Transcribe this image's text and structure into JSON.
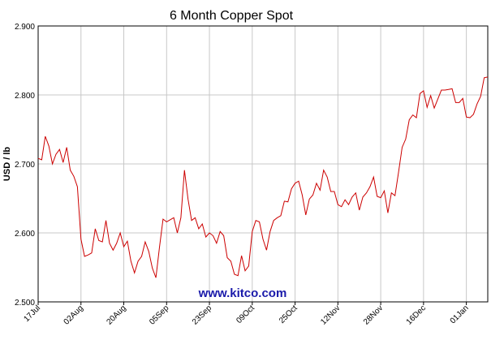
{
  "chart_data": {
    "type": "line",
    "title": "6 Month Copper Spot",
    "y_label": "USD / lb",
    "watermark": "www.kitco.com",
    "categories": [
      "17Jul",
      null,
      null,
      null,
      null,
      null,
      null,
      null,
      null,
      null,
      null,
      null,
      "02Aug",
      null,
      null,
      null,
      null,
      null,
      null,
      null,
      null,
      null,
      null,
      null,
      "20Aug",
      null,
      null,
      null,
      null,
      null,
      null,
      null,
      null,
      null,
      null,
      null,
      "05Sep",
      null,
      null,
      null,
      null,
      null,
      null,
      null,
      null,
      null,
      null,
      null,
      "23Sep",
      null,
      null,
      null,
      null,
      null,
      null,
      null,
      null,
      null,
      null,
      null,
      "09Oct",
      null,
      null,
      null,
      null,
      null,
      null,
      null,
      null,
      null,
      null,
      null,
      "25Oct",
      null,
      null,
      null,
      null,
      null,
      null,
      null,
      null,
      null,
      null,
      null,
      "12Nov",
      null,
      null,
      null,
      null,
      null,
      null,
      null,
      null,
      null,
      null,
      null,
      "28Nov",
      null,
      null,
      null,
      null,
      null,
      null,
      null,
      null,
      null,
      null,
      null,
      "16Dec",
      null,
      null,
      null,
      null,
      null,
      null,
      null,
      null,
      null,
      null,
      null,
      "01Jan",
      null,
      null,
      null,
      null,
      null,
      null
    ],
    "series": [
      {
        "name": "Copper",
        "color": "#cc0000",
        "values": [
          2.708,
          2.706,
          2.74,
          2.726,
          2.7,
          2.714,
          2.721,
          2.702,
          2.724,
          2.691,
          2.682,
          2.667,
          2.591,
          2.566,
          2.568,
          2.571,
          2.606,
          2.589,
          2.587,
          2.618,
          2.585,
          2.575,
          2.585,
          2.6,
          2.58,
          2.588,
          2.559,
          2.542,
          2.559,
          2.566,
          2.587,
          2.573,
          2.549,
          2.535,
          2.579,
          2.62,
          2.616,
          2.619,
          2.622,
          2.6,
          2.622,
          2.691,
          2.649,
          2.618,
          2.622,
          2.606,
          2.613,
          2.594,
          2.6,
          2.596,
          2.585,
          2.602,
          2.596,
          2.564,
          2.559,
          2.54,
          2.538,
          2.567,
          2.545,
          2.552,
          2.602,
          2.618,
          2.616,
          2.591,
          2.575,
          2.602,
          2.618,
          2.622,
          2.625,
          2.646,
          2.645,
          2.664,
          2.672,
          2.675,
          2.655,
          2.626,
          2.649,
          2.655,
          2.672,
          2.662,
          2.691,
          2.681,
          2.66,
          2.66,
          2.641,
          2.638,
          2.648,
          2.641,
          2.652,
          2.658,
          2.633,
          2.652,
          2.658,
          2.667,
          2.681,
          2.653,
          2.651,
          2.661,
          2.629,
          2.658,
          2.654,
          2.688,
          2.724,
          2.736,
          2.764,
          2.771,
          2.767,
          2.802,
          2.806,
          2.782,
          2.799,
          2.781,
          2.794,
          2.807,
          2.807,
          2.808,
          2.809,
          2.789,
          2.789,
          2.795,
          2.768,
          2.767,
          2.772,
          2.787,
          2.798,
          2.825,
          2.826
        ]
      }
    ],
    "ylim": [
      2.5,
      2.9
    ],
    "yticks": [
      {
        "value": 2.5,
        "label": "2.500"
      },
      {
        "value": 2.6,
        "label": "2.600"
      },
      {
        "value": 2.7,
        "label": "2.700"
      },
      {
        "value": 2.8,
        "label": "2.800"
      },
      {
        "value": 2.9,
        "label": "2.900"
      }
    ],
    "grid": true
  }
}
